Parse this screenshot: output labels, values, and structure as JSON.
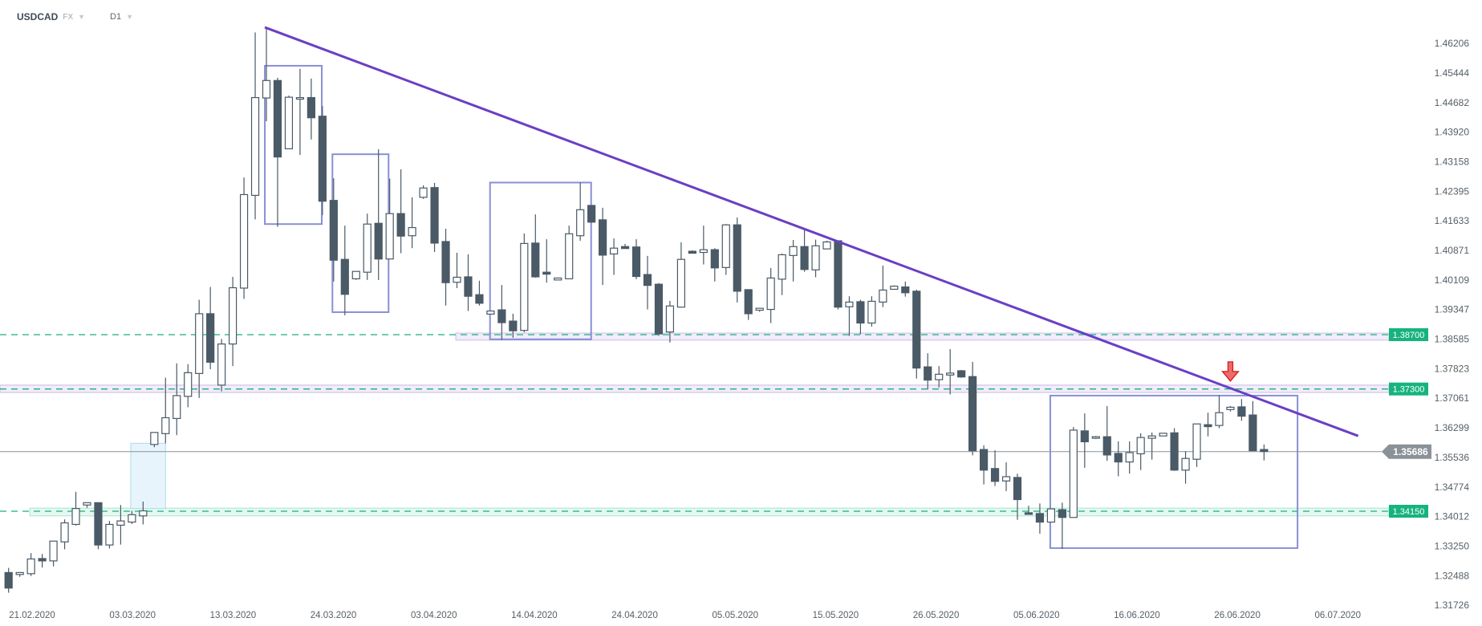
{
  "header": {
    "symbol": "USDCAD",
    "market": "FX",
    "timeframe": "D1"
  },
  "chart_data": {
    "type": "candlestick",
    "y_ticks": [
      "1.46206",
      "1.45444",
      "1.44682",
      "1.43920",
      "1.43158",
      "1.42395",
      "1.41633",
      "1.40871",
      "1.40109",
      "1.39347",
      "1.38585",
      "1.37823",
      "1.37061",
      "1.36299",
      "1.35536",
      "1.34774",
      "1.34012",
      "1.33250",
      "1.32488",
      "1.31726"
    ],
    "x_ticks": [
      "21.02.2020",
      "03.03.2020",
      "13.03.2020",
      "24.03.2020",
      "03.04.2020",
      "14.04.2020",
      "24.04.2020",
      "05.05.2020",
      "15.05.2020",
      "26.05.2020",
      "05.06.2020",
      "16.06.2020",
      "26.06.2020",
      "06.07.2020"
    ],
    "ohlc_fields": [
      "open",
      "high",
      "low",
      "close"
    ],
    "ohlc": [
      [
        1.3257,
        1.3269,
        1.3205,
        1.3217
      ],
      [
        1.3252,
        1.3257,
        1.3246,
        1.3257
      ],
      [
        1.3254,
        1.3307,
        1.3248,
        1.3292
      ],
      [
        1.3293,
        1.3305,
        1.327,
        1.3287
      ],
      [
        1.3287,
        1.3338,
        1.3273,
        1.3338
      ],
      [
        1.3336,
        1.3394,
        1.3317,
        1.3385
      ],
      [
        1.3381,
        1.3465,
        1.3378,
        1.3422
      ],
      [
        1.3431,
        1.3437,
        1.3424,
        1.3437
      ],
      [
        1.3437,
        1.3437,
        1.3317,
        1.3328
      ],
      [
        1.3328,
        1.339,
        1.3319,
        1.3381
      ],
      [
        1.3379,
        1.3431,
        1.3329,
        1.339
      ],
      [
        1.3387,
        1.3416,
        1.3382,
        1.3406
      ],
      [
        1.3403,
        1.344,
        1.3381,
        1.3416
      ],
      [
        1.3587,
        1.3618,
        1.358,
        1.3618
      ],
      [
        1.3615,
        1.3759,
        1.359,
        1.3656
      ],
      [
        1.3654,
        1.3796,
        1.3611,
        1.3713
      ],
      [
        1.3711,
        1.3794,
        1.3683,
        1.3772
      ],
      [
        1.377,
        1.396,
        1.3707,
        1.3924
      ],
      [
        1.3924,
        1.3993,
        1.3781,
        1.3799
      ],
      [
        1.374,
        1.3859,
        1.3724,
        1.3846
      ],
      [
        1.3846,
        1.4019,
        1.3789,
        1.3991
      ],
      [
        1.399,
        1.4275,
        1.3962,
        1.4231
      ],
      [
        1.4229,
        1.4649,
        1.4167,
        1.4481
      ],
      [
        1.448,
        1.4663,
        1.442,
        1.4525
      ],
      [
        1.4525,
        1.4532,
        1.4148,
        1.4328
      ],
      [
        1.4349,
        1.4486,
        1.4349,
        1.4482
      ],
      [
        1.4477,
        1.4555,
        1.4333,
        1.4481
      ],
      [
        1.4481,
        1.453,
        1.4373,
        1.4429
      ],
      [
        1.4433,
        1.4459,
        1.4178,
        1.4214
      ],
      [
        1.4216,
        1.4273,
        1.4007,
        1.4062
      ],
      [
        1.4064,
        1.4151,
        1.392,
        1.3974
      ],
      [
        1.4014,
        1.4033,
        1.4011,
        1.4033
      ],
      [
        1.4031,
        1.4182,
        1.4011,
        1.4155
      ],
      [
        1.4157,
        1.4348,
        1.4011,
        1.4065
      ],
      [
        1.4065,
        1.4272,
        1.4065,
        1.4182
      ],
      [
        1.4182,
        1.4296,
        1.408,
        1.4124
      ],
      [
        1.4125,
        1.4224,
        1.4093,
        1.4146
      ],
      [
        1.4224,
        1.4255,
        1.422,
        1.4248
      ],
      [
        1.4249,
        1.4261,
        1.4083,
        1.4106
      ],
      [
        1.411,
        1.4143,
        1.3945,
        1.4004
      ],
      [
        1.4005,
        1.4081,
        1.399,
        1.4018
      ],
      [
        1.4019,
        1.4077,
        1.3931,
        1.3969
      ],
      [
        1.3973,
        1.4009,
        1.3945,
        1.3951
      ],
      [
        1.3923,
        1.3931,
        1.3923,
        1.3931
      ],
      [
        1.3934,
        1.3998,
        1.3857,
        1.3901
      ],
      [
        1.3905,
        1.3924,
        1.3862,
        1.388
      ],
      [
        1.3881,
        1.4131,
        1.3876,
        1.4105
      ],
      [
        1.4106,
        1.418,
        1.4017,
        1.4019
      ],
      [
        1.4031,
        1.4116,
        1.4004,
        1.4026
      ],
      [
        1.4011,
        1.4016,
        1.4011,
        1.4016
      ],
      [
        1.4014,
        1.4151,
        1.4014,
        1.413
      ],
      [
        1.4125,
        1.4262,
        1.4112,
        1.4192
      ],
      [
        1.4203,
        1.4203,
        1.416,
        1.416
      ],
      [
        1.4166,
        1.4197,
        1.3998,
        1.4075
      ],
      [
        1.4078,
        1.4118,
        1.4024,
        1.4093
      ],
      [
        1.4097,
        1.4104,
        1.4092,
        1.4092
      ],
      [
        1.4096,
        1.4116,
        1.4013,
        1.402
      ],
      [
        1.4025,
        1.4073,
        1.3935,
        1.3997
      ],
      [
        1.4,
        1.4003,
        1.3867,
        1.3872
      ],
      [
        1.3877,
        1.3957,
        1.385,
        1.3944
      ],
      [
        1.3941,
        1.4108,
        1.394,
        1.4064
      ],
      [
        1.4085,
        1.4087,
        1.408,
        1.408
      ],
      [
        1.4082,
        1.4151,
        1.4051,
        1.4089
      ],
      [
        1.4089,
        1.4093,
        1.4007,
        1.4042
      ],
      [
        1.4043,
        1.4155,
        1.4024,
        1.4153
      ],
      [
        1.4153,
        1.4172,
        1.3953,
        1.3982
      ],
      [
        1.3986,
        1.3986,
        1.3908,
        1.3924
      ],
      [
        1.3933,
        1.3938,
        1.3929,
        1.3938
      ],
      [
        1.3935,
        1.4042,
        1.39,
        1.4016
      ],
      [
        1.4013,
        1.4079,
        1.3972,
        1.4076
      ],
      [
        1.4074,
        1.4114,
        1.4007,
        1.4097
      ],
      [
        1.4097,
        1.4141,
        1.4032,
        1.4038
      ],
      [
        1.4037,
        1.4115,
        1.4018,
        1.4099
      ],
      [
        1.4091,
        1.4112,
        1.4091,
        1.4109
      ],
      [
        1.4112,
        1.4112,
        1.3935,
        1.3941
      ],
      [
        1.3942,
        1.3969,
        1.3867,
        1.3954
      ],
      [
        1.3955,
        1.396,
        1.3871,
        1.39
      ],
      [
        1.39,
        1.3969,
        1.3891,
        1.3956
      ],
      [
        1.3954,
        1.4048,
        1.3941,
        1.3985
      ],
      [
        1.3987,
        1.3997,
        1.3987,
        1.3995
      ],
      [
        1.3993,
        1.4007,
        1.3968,
        1.3978
      ],
      [
        1.3982,
        1.3986,
        1.3757,
        1.3784
      ],
      [
        1.3787,
        1.3822,
        1.3729,
        1.3753
      ],
      [
        1.3754,
        1.3789,
        1.3734,
        1.3768
      ],
      [
        1.3766,
        1.3833,
        1.3716,
        1.3771
      ],
      [
        1.3777,
        1.3779,
        1.3759,
        1.3761
      ],
      [
        1.3762,
        1.38,
        1.3559,
        1.3571
      ],
      [
        1.3574,
        1.3585,
        1.3484,
        1.3521
      ],
      [
        1.3525,
        1.3572,
        1.348,
        1.3492
      ],
      [
        1.3493,
        1.3541,
        1.3467,
        1.3504
      ],
      [
        1.3502,
        1.3512,
        1.3393,
        1.3445
      ],
      [
        1.3411,
        1.3429,
        1.3407,
        1.3407
      ],
      [
        1.3409,
        1.3435,
        1.3357,
        1.3387
      ],
      [
        1.3387,
        1.3421,
        1.3387,
        1.3421
      ],
      [
        1.3419,
        1.3437,
        1.3318,
        1.3399
      ],
      [
        1.3399,
        1.3632,
        1.3399,
        1.3624
      ],
      [
        1.3622,
        1.3667,
        1.3527,
        1.3594
      ],
      [
        1.3603,
        1.3609,
        1.3601,
        1.3607
      ],
      [
        1.3607,
        1.3686,
        1.3545,
        1.356
      ],
      [
        1.3564,
        1.3595,
        1.3505,
        1.3542
      ],
      [
        1.3542,
        1.3595,
        1.3512,
        1.3566
      ],
      [
        1.3563,
        1.3616,
        1.3521,
        1.3605
      ],
      [
        1.3603,
        1.3618,
        1.3548,
        1.3609
      ],
      [
        1.3609,
        1.3616,
        1.3609,
        1.3616
      ],
      [
        1.3617,
        1.3629,
        1.3519,
        1.3521
      ],
      [
        1.3521,
        1.357,
        1.3486,
        1.3551
      ],
      [
        1.3549,
        1.364,
        1.3529,
        1.364
      ],
      [
        1.3638,
        1.3669,
        1.3608,
        1.3633
      ],
      [
        1.3636,
        1.3714,
        1.3629,
        1.3669
      ],
      [
        1.3677,
        1.3686,
        1.3672,
        1.3683
      ],
      [
        1.3684,
        1.3704,
        1.3648,
        1.366
      ],
      [
        1.3663,
        1.3699,
        1.3571,
        1.3571
      ],
      [
        1.3574,
        1.3587,
        1.3546,
        1.3569
      ]
    ],
    "current_price": "1.35686",
    "levels": [
      {
        "value": "1.38700",
        "band": [
          1.3856,
          1.3874
        ],
        "band_from_index": 39.9
      },
      {
        "value": "1.37300",
        "band": [
          1.3721,
          1.374
        ],
        "band_from_index": -1
      },
      {
        "value": "1.34150",
        "band": [
          1.3403,
          1.3423
        ],
        "band_from_index": 1.9
      }
    ],
    "trendline": {
      "from": {
        "index": 22.86,
        "price": 1.4662
      },
      "to": {
        "index": 120.4,
        "price": 1.3609
      }
    },
    "boxes": [
      {
        "from_index": 22.86,
        "to_index": 27.94,
        "top": 1.4563,
        "bottom": 1.4155
      },
      {
        "from_index": 28.89,
        "to_index": 33.9,
        "top": 1.4335,
        "bottom": 1.3928
      },
      {
        "from_index": 42.95,
        "to_index": 51.97,
        "top": 1.4262,
        "bottom": 1.3858
      },
      {
        "from_index": 92.93,
        "to_index": 114.99,
        "top": 1.3713,
        "bottom": 1.332
      }
    ],
    "gap_box": {
      "from_index": 10.9,
      "to_index": 14.0,
      "top": 1.359,
      "bottom": 1.3422
    },
    "signal_arrow": {
      "index": 109,
      "price": 1.38,
      "direction": "down"
    },
    "colors": {
      "bear_candle": "#4a5a66",
      "bull_candle": "#ffffff",
      "candle_outline": "#4a5a66",
      "trendline": "#6a3fc4",
      "box": "#7c83d1",
      "level_line": "#1aaf7d",
      "level_label": "#16b37d",
      "level_band": "#f1edf9",
      "support_band": "#e6f8f1",
      "gap_box": "#e8f4fb",
      "current_price": "#8a9298",
      "signal_arrow": "#e53935"
    }
  }
}
